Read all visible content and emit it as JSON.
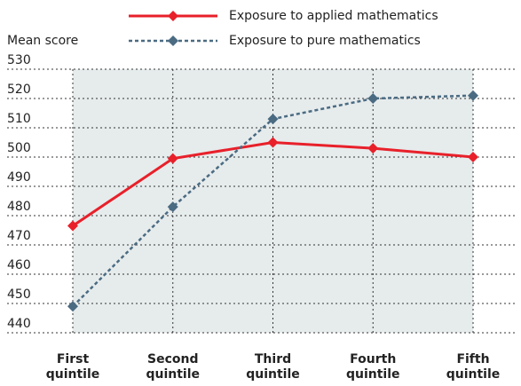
{
  "chart_data": {
    "type": "line",
    "y_label": "Mean score",
    "categories": [
      "First quintile",
      "Second quintile",
      "Third quintile",
      "Fourth quintile",
      "Fifth quintile"
    ],
    "series": [
      {
        "name": "Exposure to applied mathematics",
        "color": "#e8202a",
        "dash": false,
        "values": [
          476.5,
          499.5,
          505,
          503,
          500
        ]
      },
      {
        "name": "Exposure to pure mathematics",
        "color": "#4a6b82",
        "dash": true,
        "values": [
          449,
          483,
          513,
          520,
          521
        ]
      }
    ],
    "ylim": [
      440,
      530
    ],
    "yticks": [
      440,
      450,
      460,
      470,
      480,
      490,
      500,
      510,
      520,
      530
    ],
    "grid": true
  }
}
